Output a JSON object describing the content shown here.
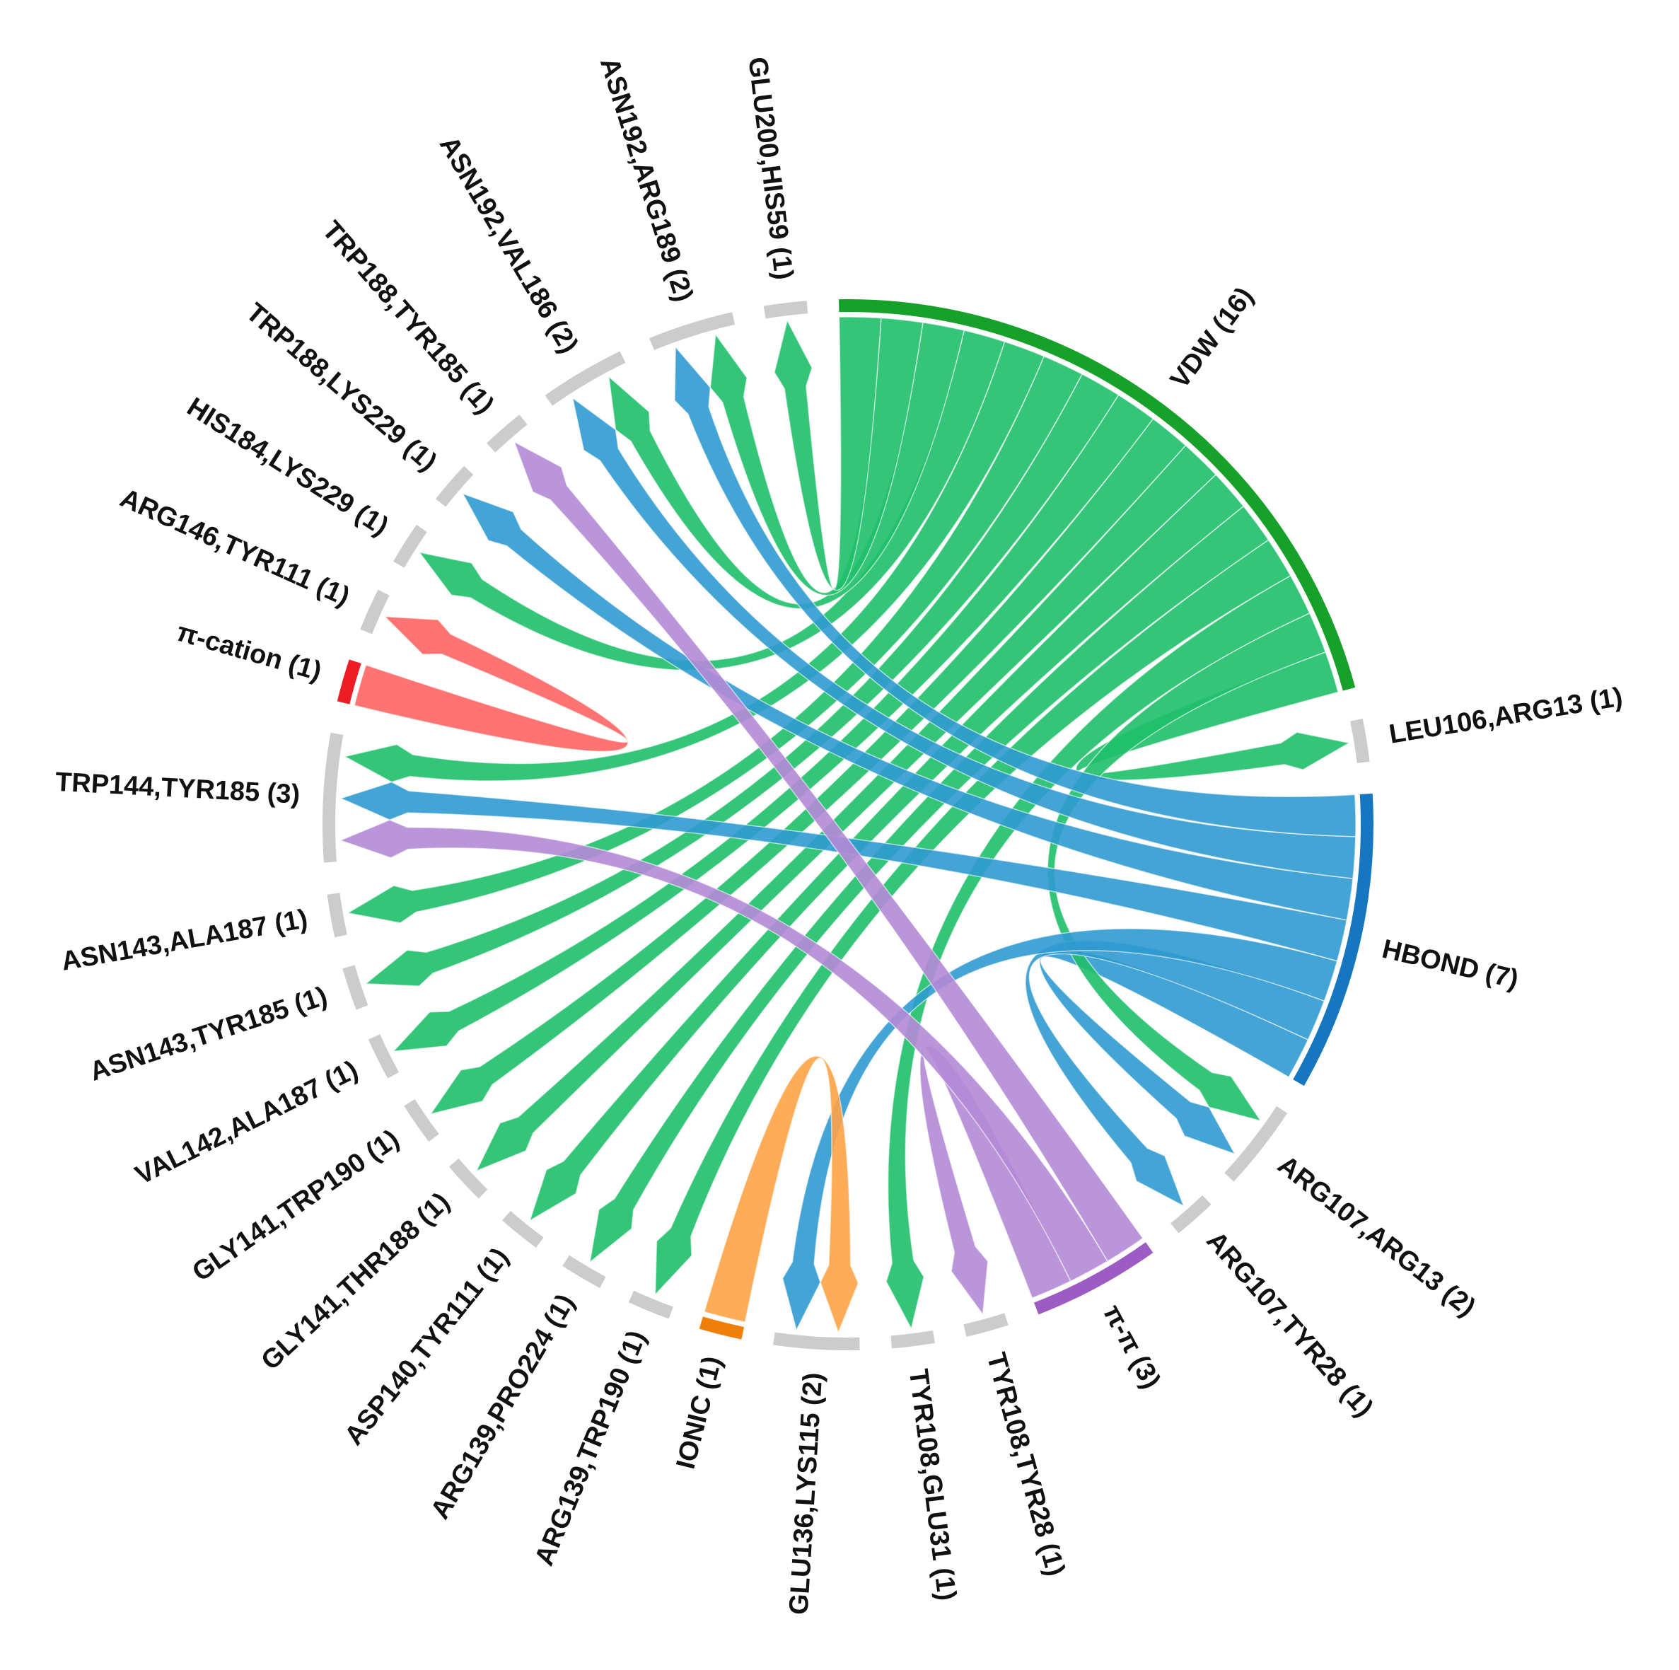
{
  "chart_data": {
    "type": "chord",
    "nodes": [
      {
        "label": "VDW (16)",
        "value": 16,
        "color": "#17a02a",
        "link_color": "#1fbf6a"
      },
      {
        "label": "LEU106,ARG13 (1)",
        "value": 1,
        "color": "#cccccc"
      },
      {
        "label": "HBOND (7)",
        "value": 7,
        "color": "#1677c0",
        "link_color": "#2f9ad0"
      },
      {
        "label": "ARG107,ARG13 (2)",
        "value": 2,
        "color": "#cccccc"
      },
      {
        "label": "ARG107,TYR28 (1)",
        "value": 1,
        "color": "#cccccc"
      },
      {
        "label": "π-π (3)",
        "value": 3,
        "color": "#9c5cc4",
        "link_color": "#b48ad6"
      },
      {
        "label": "TYR108,TYR28 (1)",
        "value": 1,
        "color": "#cccccc"
      },
      {
        "label": "TYR108,GLU31 (1)",
        "value": 1,
        "color": "#cccccc"
      },
      {
        "label": "GLU136,LYS115 (2)",
        "value": 2,
        "color": "#cccccc"
      },
      {
        "label": "IONIC (1)",
        "value": 1,
        "color": "#f07f0a",
        "link_color": "#ffa347"
      },
      {
        "label": "ARG139,TRP190 (1)",
        "value": 1,
        "color": "#cccccc"
      },
      {
        "label": "ARG139,PRO224 (1)",
        "value": 1,
        "color": "#cccccc"
      },
      {
        "label": "ASP140,TYR111 (1)",
        "value": 1,
        "color": "#cccccc"
      },
      {
        "label": "GLY141,THR188 (1)",
        "value": 1,
        "color": "#cccccc"
      },
      {
        "label": "GLY141,TRP190 (1)",
        "value": 1,
        "color": "#cccccc"
      },
      {
        "label": "VAL142,ALA187 (1)",
        "value": 1,
        "color": "#cccccc"
      },
      {
        "label": "ASN143,TYR185 (1)",
        "value": 1,
        "color": "#cccccc"
      },
      {
        "label": "ASN143,ALA187 (1)",
        "value": 1,
        "color": "#cccccc"
      },
      {
        "label": "TRP144,TYR185 (3)",
        "value": 3,
        "color": "#cccccc"
      },
      {
        "label": "π-cation (1)",
        "value": 1,
        "color": "#ee1c25",
        "link_color": "#ff6464"
      },
      {
        "label": "ARG146,TYR111 (1)",
        "value": 1,
        "color": "#cccccc"
      },
      {
        "label": "HIS184,LYS229 (1)",
        "value": 1,
        "color": "#cccccc"
      },
      {
        "label": "TRP188,LYS229 (1)",
        "value": 1,
        "color": "#cccccc"
      },
      {
        "label": "TRP188,TYR185 (1)",
        "value": 1,
        "color": "#cccccc"
      },
      {
        "label": "ASN192,VAL186 (2)",
        "value": 2,
        "color": "#cccccc"
      },
      {
        "label": "ASN192,ARG189 (2)",
        "value": 2,
        "color": "#cccccc"
      },
      {
        "label": "GLU200,HIS59 (1)",
        "value": 1,
        "color": "#cccccc"
      }
    ],
    "links": [
      {
        "source": 0,
        "target": 1,
        "value": 1
      },
      {
        "source": 2,
        "target": 3,
        "value": 1
      },
      {
        "source": 0,
        "target": 3,
        "value": 1
      },
      {
        "source": 2,
        "target": 4,
        "value": 1
      },
      {
        "source": 5,
        "target": 6,
        "value": 1
      },
      {
        "source": 0,
        "target": 7,
        "value": 1
      },
      {
        "source": 2,
        "target": 8,
        "value": 1
      },
      {
        "source": 9,
        "target": 8,
        "value": 1
      },
      {
        "source": 0,
        "target": 10,
        "value": 1
      },
      {
        "source": 0,
        "target": 11,
        "value": 1
      },
      {
        "source": 0,
        "target": 12,
        "value": 1
      },
      {
        "source": 0,
        "target": 13,
        "value": 1
      },
      {
        "source": 0,
        "target": 14,
        "value": 1
      },
      {
        "source": 0,
        "target": 15,
        "value": 1
      },
      {
        "source": 0,
        "target": 16,
        "value": 1
      },
      {
        "source": 0,
        "target": 17,
        "value": 1
      },
      {
        "source": 0,
        "target": 18,
        "value": 1
      },
      {
        "source": 2,
        "target": 18,
        "value": 1
      },
      {
        "source": 5,
        "target": 18,
        "value": 1
      },
      {
        "source": 19,
        "target": 20,
        "value": 1
      },
      {
        "source": 0,
        "target": 21,
        "value": 1
      },
      {
        "source": 2,
        "target": 22,
        "value": 1
      },
      {
        "source": 5,
        "target": 23,
        "value": 1
      },
      {
        "source": 0,
        "target": 24,
        "value": 1
      },
      {
        "source": 2,
        "target": 24,
        "value": 1
      },
      {
        "source": 0,
        "target": 25,
        "value": 1
      },
      {
        "source": 2,
        "target": 25,
        "value": 1
      },
      {
        "source": 0,
        "target": 26,
        "value": 1
      }
    ]
  }
}
